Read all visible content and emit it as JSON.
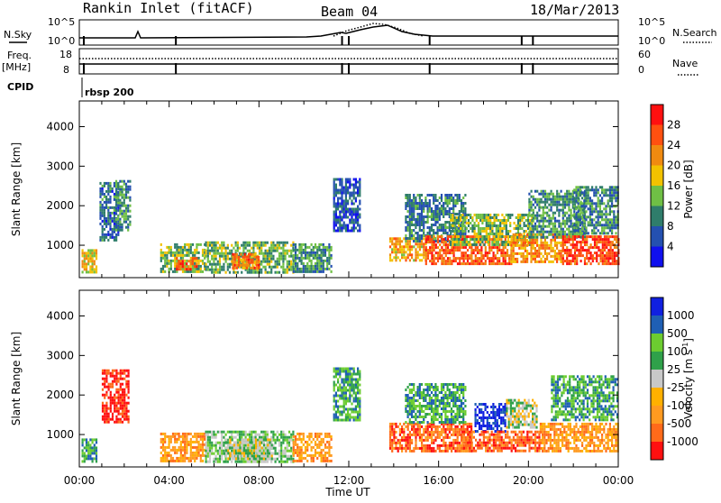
{
  "header": {
    "station": "Rankin Inlet (fitACF)",
    "beam": "Beam 04",
    "date": "18/Mar/2013"
  },
  "top_panels": {
    "nsky_label": "N.Sky",
    "nsky_ticks": [
      "10^5",
      "10^0"
    ],
    "nsearch_label": "N.Search",
    "nsearch_ticks": [
      "10^5",
      "10^0"
    ],
    "freq_label": "Freq.",
    "freq_unit": "[MHz]",
    "freq_ticks": [
      "18",
      "8"
    ],
    "nave_label": "Nave",
    "nave_ticks": [
      "60",
      "0"
    ],
    "cpid_label": "CPID",
    "cpid_value": "rbsp 200"
  },
  "colors": {
    "power_scale": [
      "#1010ee",
      "#2450b0",
      "#2f7d6b",
      "#6fbf45",
      "#f2c200",
      "#f08a10",
      "#ff5010",
      "#ff1010"
    ],
    "velocity_scale": [
      "#ff1010",
      "#ff6a1a",
      "#ff9a20",
      "#ffb000",
      "#c8c8c8",
      "#2fa14a",
      "#6ccc30",
      "#1f5fb4",
      "#1020e0"
    ]
  },
  "chart_data": [
    {
      "type": "heatmap",
      "title": "Power",
      "xlabel": "Time UT",
      "ylabel": "Slant Range [km]",
      "x_ticks": [
        "00:00",
        "04:00",
        "08:00",
        "12:00",
        "16:00",
        "20:00",
        "00:00"
      ],
      "x_range_hours": [
        0,
        24
      ],
      "y_ticks": [
        1000,
        2000,
        3000,
        4000
      ],
      "ylim": [
        180,
        4650
      ],
      "colorbar": {
        "label": "Power [dB]",
        "ticks": [
          "4",
          "8",
          "12",
          "16",
          "20",
          "24",
          "28"
        ],
        "range": [
          0,
          32
        ]
      },
      "regions": [
        {
          "t0": 0.1,
          "t1": 0.8,
          "r0": 300,
          "r1": 900,
          "v": 18
        },
        {
          "t0": 0.9,
          "t1": 1.7,
          "r0": 1100,
          "r1": 2600,
          "v": 8
        },
        {
          "t0": 1.6,
          "t1": 2.3,
          "r0": 1400,
          "r1": 2650,
          "v": 10
        },
        {
          "t0": 3.6,
          "t1": 5.6,
          "r0": 300,
          "r1": 1050,
          "v": 14
        },
        {
          "t0": 4.3,
          "t1": 5.2,
          "r0": 420,
          "r1": 700,
          "v": 26
        },
        {
          "t0": 5.6,
          "t1": 9.5,
          "r0": 280,
          "r1": 1100,
          "v": 13
        },
        {
          "t0": 6.8,
          "t1": 8.0,
          "r0": 400,
          "r1": 800,
          "v": 24
        },
        {
          "t0": 9.5,
          "t1": 11.2,
          "r0": 300,
          "r1": 1050,
          "v": 11
        },
        {
          "t0": 11.3,
          "t1": 12.5,
          "r0": 1400,
          "r1": 2700,
          "v": 7
        },
        {
          "t0": 13.8,
          "t1": 15.4,
          "r0": 600,
          "r1": 1200,
          "v": 20
        },
        {
          "t0": 14.5,
          "t1": 17.2,
          "r0": 1100,
          "r1": 2300,
          "v": 9
        },
        {
          "t0": 15.4,
          "t1": 19.2,
          "r0": 550,
          "r1": 1250,
          "v": 25
        },
        {
          "t0": 16.5,
          "t1": 20.2,
          "r0": 1000,
          "r1": 1800,
          "v": 14
        },
        {
          "t0": 19.2,
          "t1": 21.5,
          "r0": 600,
          "r1": 1300,
          "v": 22
        },
        {
          "t0": 20.0,
          "t1": 22.5,
          "r0": 1200,
          "r1": 2400,
          "v": 11
        },
        {
          "t0": 21.5,
          "t1": 24.0,
          "r0": 550,
          "r1": 1250,
          "v": 27
        },
        {
          "t0": 22.0,
          "t1": 24.0,
          "r0": 1300,
          "r1": 2500,
          "v": 10
        }
      ]
    },
    {
      "type": "heatmap",
      "title": "Velocity",
      "xlabel": "Time UT",
      "ylabel": "Slant Range [km]",
      "x_ticks": [
        "00:00",
        "04:00",
        "08:00",
        "12:00",
        "16:00",
        "20:00",
        "00:00"
      ],
      "x_range_hours": [
        0,
        24
      ],
      "y_ticks": [
        1000,
        2000,
        3000,
        4000
      ],
      "ylim": [
        180,
        4650
      ],
      "colorbar": {
        "label": "Velocity [m s^-1]",
        "ticks": [
          "1000",
          "500",
          "100",
          "25",
          "-25",
          "-100",
          "-500",
          "-1000"
        ]
      },
      "regions": [
        {
          "t0": 0.1,
          "t1": 0.8,
          "r0": 300,
          "r1": 900,
          "v": 6
        },
        {
          "t0": 1.0,
          "t1": 2.2,
          "r0": 1300,
          "r1": 2650,
          "v": 0
        },
        {
          "t0": 3.6,
          "t1": 5.6,
          "r0": 300,
          "r1": 1050,
          "v": 2
        },
        {
          "t0": 5.6,
          "t1": 9.5,
          "r0": 280,
          "r1": 1100,
          "v": 5
        },
        {
          "t0": 6.5,
          "t1": 8.6,
          "r0": 400,
          "r1": 900,
          "v": 4
        },
        {
          "t0": 9.5,
          "t1": 11.2,
          "r0": 300,
          "r1": 1050,
          "v": 2
        },
        {
          "t0": 11.3,
          "t1": 12.5,
          "r0": 1400,
          "r1": 2700,
          "v": 6
        },
        {
          "t0": 13.8,
          "t1": 17.5,
          "r0": 600,
          "r1": 1300,
          "v": 1
        },
        {
          "t0": 14.5,
          "t1": 17.2,
          "r0": 1300,
          "r1": 2300,
          "v": 6
        },
        {
          "t0": 17.6,
          "t1": 19.0,
          "r0": 1100,
          "r1": 1800,
          "v": 8
        },
        {
          "t0": 19.0,
          "t1": 20.4,
          "r0": 1200,
          "r1": 1900,
          "v": 4
        },
        {
          "t0": 17.0,
          "t1": 20.5,
          "r0": 600,
          "r1": 1100,
          "v": 1
        },
        {
          "t0": 20.5,
          "t1": 24.0,
          "r0": 550,
          "r1": 1300,
          "v": 2
        },
        {
          "t0": 21.0,
          "t1": 24.0,
          "r0": 1400,
          "r1": 2500,
          "v": 6
        }
      ]
    }
  ]
}
